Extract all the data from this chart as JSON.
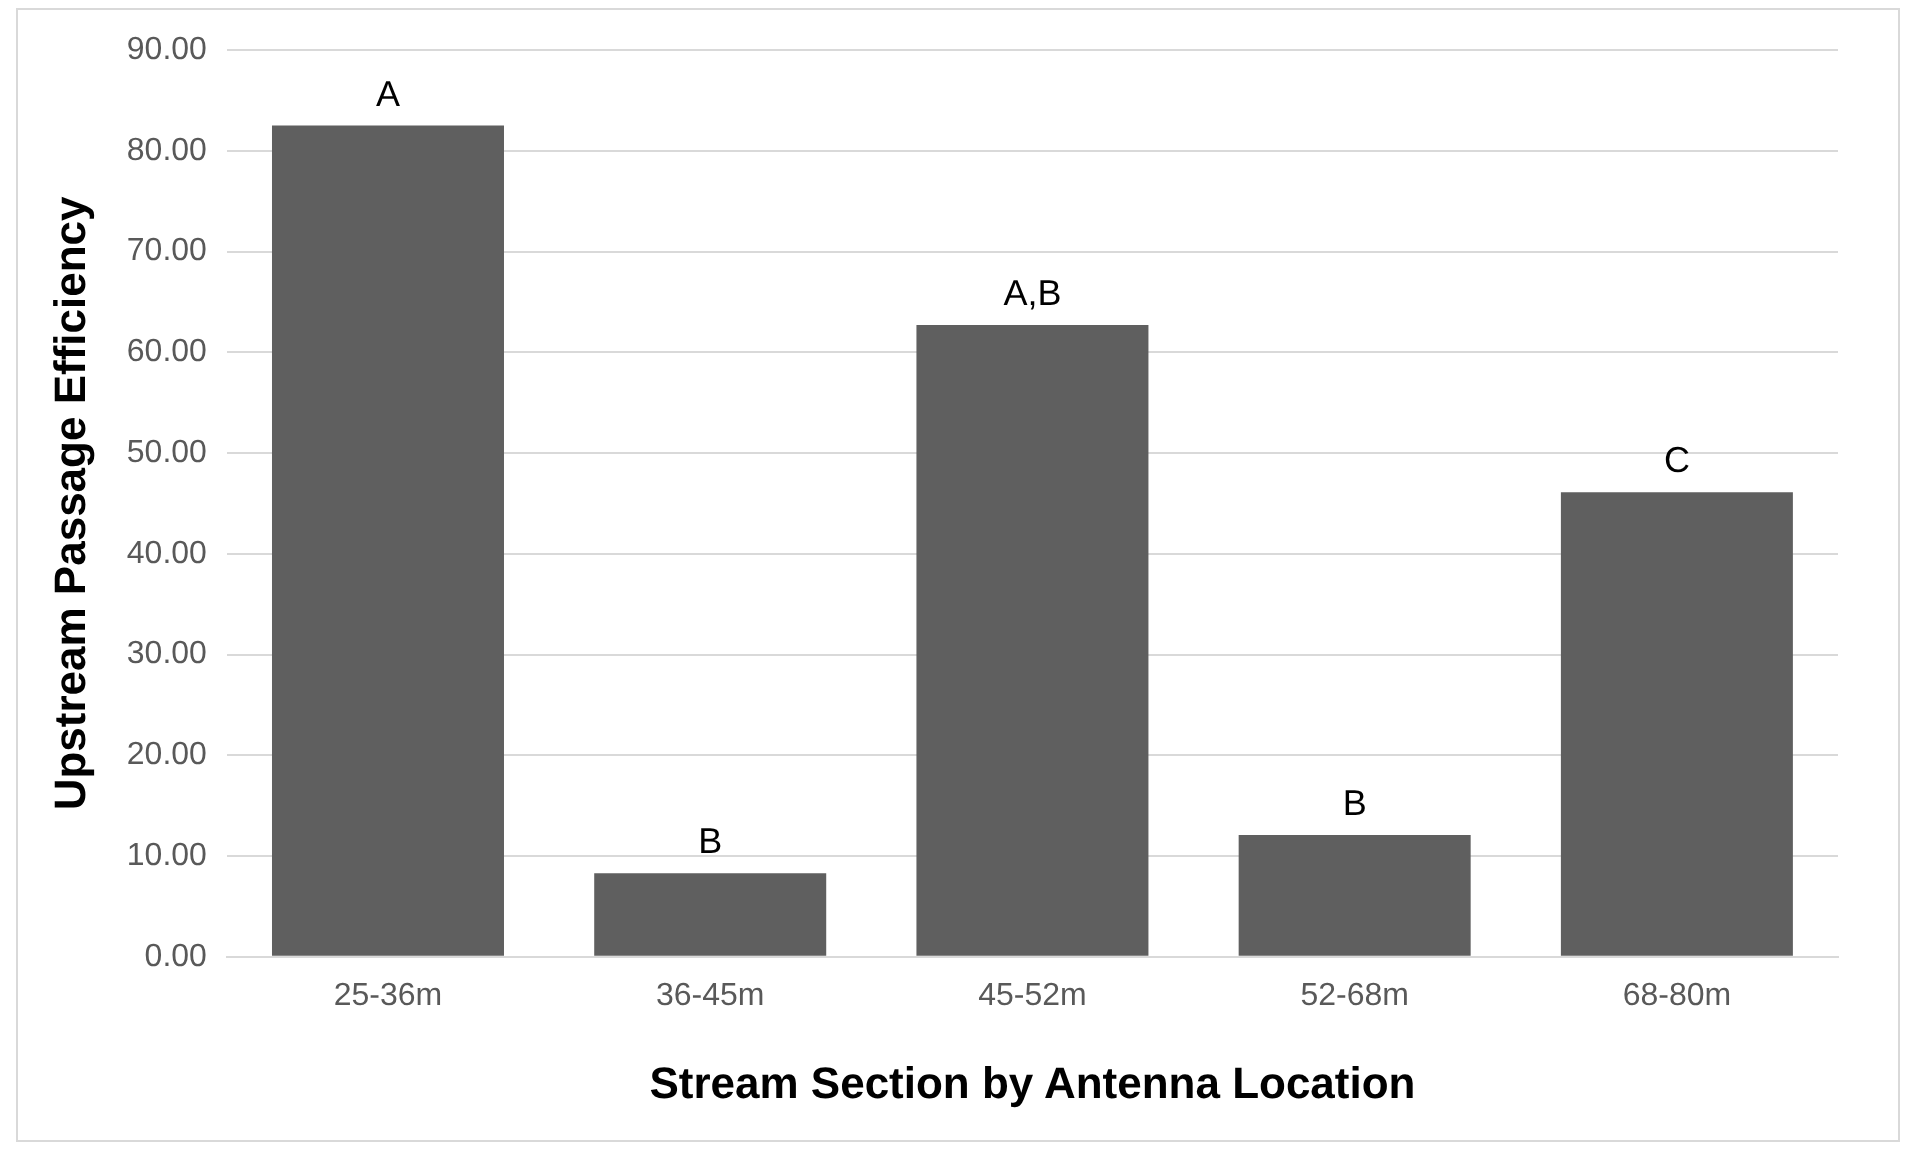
{
  "chart_data": {
    "type": "bar",
    "xlabel": "Stream Section by Antenna Location",
    "ylabel": "Upstream Passage Efficiency",
    "categories": [
      "25-36m",
      "36-45m",
      "45-52m",
      "52-68m",
      "68-80m"
    ],
    "values": [
      82.5,
      8.3,
      62.7,
      12.1,
      46.1
    ],
    "color": "#5f5f5f",
    "ylim": [
      0,
      90
    ],
    "yticks": [
      {
        "value": 0,
        "label": "0.00"
      },
      {
        "value": 10,
        "label": "10.00"
      },
      {
        "value": 20,
        "label": "20.00"
      },
      {
        "value": 30,
        "label": "30.00"
      },
      {
        "value": 40,
        "label": "40.00"
      },
      {
        "value": 50,
        "label": "50.00"
      },
      {
        "value": 60,
        "label": "60.00"
      },
      {
        "value": 70,
        "label": "70.00"
      },
      {
        "value": 80,
        "label": "80.00"
      },
      {
        "value": 90,
        "label": "90.00"
      }
    ],
    "grid": "y",
    "annotations": [
      {
        "text": "A",
        "x": "25-36m",
        "y": 82.5
      },
      {
        "text": "B",
        "x": "36-45m",
        "y": 8.3
      },
      {
        "text": "A,B",
        "x": "45-52m",
        "y": 62.7
      },
      {
        "text": "B",
        "x": "52-68m",
        "y": 12.1
      },
      {
        "text": "C",
        "x": "68-80m",
        "y": 46.1
      }
    ]
  }
}
